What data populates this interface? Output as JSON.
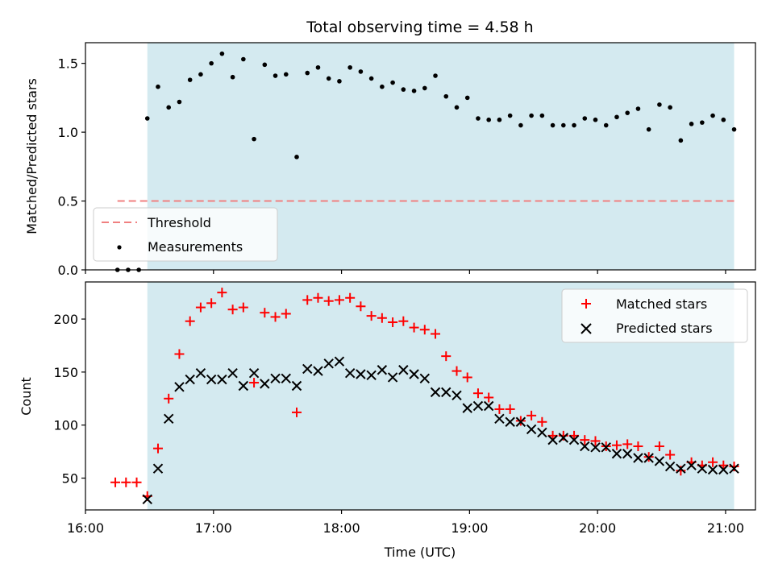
{
  "chart_data": [
    {
      "type": "scatter",
      "title": "Total observing time = 4.58 h",
      "ylabel": "Matched/Predicted stars",
      "xlabel": "",
      "xlim": [
        "16:00",
        "21:14"
      ],
      "ylim": [
        0,
        1.65
      ],
      "yticks": [
        "0.0",
        "0.5",
        "1.0",
        "1.5"
      ],
      "grid": false,
      "shaded_interval": [
        "16:29",
        "21:04"
      ],
      "shade_color": "#d4eaf0",
      "threshold": {
        "name": "Threshold",
        "y": 0.5,
        "x_from": "16:15",
        "x_to": "21:04",
        "color": "#f08080"
      },
      "legend_position": "lower-left",
      "series": [
        {
          "name": "Measurements",
          "color": "#000000",
          "x": [
            "16:15",
            "16:20",
            "16:25",
            "16:29",
            "16:34",
            "16:39",
            "16:44",
            "16:49",
            "16:54",
            "16:59",
            "17:04",
            "17:09",
            "17:14",
            "17:19",
            "17:24",
            "17:29",
            "17:34",
            "17:39",
            "17:44",
            "17:49",
            "17:54",
            "17:59",
            "18:04",
            "18:09",
            "18:14",
            "18:19",
            "18:24",
            "18:29",
            "18:34",
            "18:39",
            "18:44",
            "18:49",
            "18:54",
            "18:59",
            "19:04",
            "19:09",
            "19:14",
            "19:19",
            "19:24",
            "19:29",
            "19:34",
            "19:39",
            "19:44",
            "19:49",
            "19:54",
            "19:59",
            "20:04",
            "20:09",
            "20:14",
            "20:19",
            "20:24",
            "20:29",
            "20:34",
            "20:39",
            "20:44",
            "20:49",
            "20:54",
            "20:59",
            "21:04"
          ],
          "y": [
            0.0,
            0.0,
            0.0,
            1.1,
            1.33,
            1.18,
            1.22,
            1.38,
            1.42,
            1.5,
            1.57,
            1.4,
            1.53,
            0.95,
            1.49,
            1.41,
            1.42,
            0.82,
            1.43,
            1.47,
            1.39,
            1.37,
            1.47,
            1.44,
            1.39,
            1.33,
            1.36,
            1.31,
            1.3,
            1.32,
            1.41,
            1.26,
            1.18,
            1.25,
            1.1,
            1.09,
            1.09,
            1.12,
            1.05,
            1.12,
            1.12,
            1.05,
            1.05,
            1.05,
            1.1,
            1.09,
            1.05,
            1.11,
            1.14,
            1.17,
            1.02,
            1.2,
            1.18,
            0.94,
            1.06,
            1.07,
            1.12,
            1.09,
            1.02
          ]
        }
      ]
    },
    {
      "type": "scatter",
      "title": "",
      "xlabel": "Time (UTC)",
      "ylabel": "Count",
      "xlim": [
        "16:00",
        "21:14"
      ],
      "ylim": [
        20,
        235
      ],
      "xticks": [
        "16:00",
        "17:00",
        "18:00",
        "19:00",
        "20:00",
        "21:00"
      ],
      "yticks": [
        "50",
        "100",
        "150",
        "200"
      ],
      "grid": false,
      "shaded_interval": [
        "16:29",
        "21:04"
      ],
      "shade_color": "#d4eaf0",
      "legend_position": "top-right",
      "series": [
        {
          "name": "Matched stars",
          "marker": "plus",
          "color": "#ff0000",
          "x": [
            "16:14",
            "16:19",
            "16:24",
            "16:29",
            "16:34",
            "16:39",
            "16:44",
            "16:49",
            "16:54",
            "16:59",
            "17:04",
            "17:09",
            "17:14",
            "17:19",
            "17:24",
            "17:29",
            "17:34",
            "17:39",
            "17:44",
            "17:49",
            "17:54",
            "17:59",
            "18:04",
            "18:09",
            "18:14",
            "18:19",
            "18:24",
            "18:29",
            "18:34",
            "18:39",
            "18:44",
            "18:49",
            "18:54",
            "18:59",
            "19:04",
            "19:09",
            "19:14",
            "19:19",
            "19:24",
            "19:29",
            "19:34",
            "19:39",
            "19:44",
            "19:49",
            "19:54",
            "19:59",
            "20:04",
            "20:09",
            "20:14",
            "20:19",
            "20:24",
            "20:29",
            "20:34",
            "20:39",
            "20:44",
            "20:49",
            "20:54",
            "20:59",
            "21:04"
          ],
          "y": [
            46,
            46,
            46,
            33,
            78,
            125,
            167,
            198,
            211,
            215,
            225,
            209,
            211,
            140,
            206,
            202,
            205,
            112,
            218,
            220,
            217,
            218,
            220,
            212,
            203,
            201,
            197,
            198,
            192,
            190,
            186,
            165,
            151,
            145,
            130,
            126,
            115,
            115,
            104,
            109,
            103,
            90,
            90,
            90,
            86,
            85,
            80,
            81,
            82,
            80,
            70,
            80,
            72,
            57,
            65,
            62,
            65,
            62,
            61
          ]
        },
        {
          "name": "Predicted stars",
          "marker": "x",
          "color": "#000000",
          "x": [
            "16:29",
            "16:34",
            "16:39",
            "16:44",
            "16:49",
            "16:54",
            "16:59",
            "17:04",
            "17:09",
            "17:14",
            "17:19",
            "17:24",
            "17:29",
            "17:34",
            "17:39",
            "17:44",
            "17:49",
            "17:54",
            "17:59",
            "18:04",
            "18:09",
            "18:14",
            "18:19",
            "18:24",
            "18:29",
            "18:34",
            "18:39",
            "18:44",
            "18:49",
            "18:54",
            "18:59",
            "19:04",
            "19:09",
            "19:14",
            "19:19",
            "19:24",
            "19:29",
            "19:34",
            "19:39",
            "19:44",
            "19:49",
            "19:54",
            "19:59",
            "20:04",
            "20:09",
            "20:14",
            "20:19",
            "20:24",
            "20:29",
            "20:34",
            "20:39",
            "20:44",
            "20:49",
            "20:54",
            "20:59",
            "21:04"
          ],
          "y": [
            30,
            59,
            106,
            136,
            143,
            149,
            143,
            143,
            149,
            137,
            149,
            139,
            144,
            144,
            137,
            153,
            151,
            158,
            160,
            149,
            148,
            147,
            152,
            145,
            152,
            148,
            144,
            131,
            131,
            128,
            116,
            118,
            118,
            106,
            103,
            103,
            96,
            93,
            86,
            88,
            86,
            80,
            79,
            79,
            73,
            73,
            69,
            69,
            66,
            61,
            59,
            62,
            59,
            58,
            58,
            59
          ]
        }
      ]
    }
  ]
}
